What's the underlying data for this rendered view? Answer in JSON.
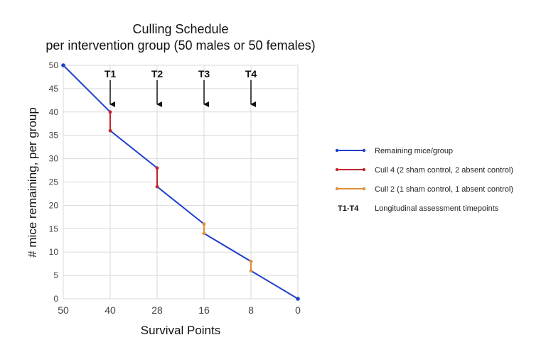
{
  "chart_data": {
    "type": "line",
    "title": [
      "Culling Schedule",
      "per intervention group (50 males or 50 females)"
    ],
    "xlabel": "Survival Points",
    "ylabel": "# mice remaining, per group",
    "x_tick_labels": [
      "50",
      "40",
      "28",
      "16",
      "8",
      "0"
    ],
    "y_ticks": [
      0,
      5,
      10,
      15,
      20,
      25,
      30,
      35,
      40,
      45,
      50
    ],
    "ylim": [
      0,
      50
    ],
    "x_positions": [
      0,
      1,
      2,
      3,
      4,
      5
    ],
    "grid": true,
    "legend_position": "right",
    "series": [
      {
        "name": "Remaining mice/group",
        "color": "#1f3fcc",
        "points": [
          [
            0,
            50
          ],
          [
            1,
            40
          ],
          [
            1,
            36
          ],
          [
            2,
            28
          ],
          [
            2,
            24
          ],
          [
            3,
            16
          ],
          [
            3,
            14
          ],
          [
            4,
            8
          ],
          [
            4,
            6
          ],
          [
            5,
            0
          ]
        ]
      },
      {
        "name": "Cull 4 (2 sham control, 2 absent control)",
        "color": "#c0282d",
        "segments": [
          [
            [
              1,
              40
            ],
            [
              1,
              36
            ]
          ],
          [
            [
              2,
              28
            ],
            [
              2,
              24
            ]
          ]
        ]
      },
      {
        "name": "Cull 2 (1 sham control, 1 absent control)",
        "color": "#e0913a",
        "segments": [
          [
            [
              3,
              16
            ],
            [
              3,
              14
            ]
          ],
          [
            [
              4,
              8
            ],
            [
              4,
              6
            ]
          ]
        ]
      }
    ],
    "timepoints": {
      "key": "T1-T4",
      "description": "Longitudinal assessment timepoints",
      "markers": [
        {
          "label": "T1",
          "x": 1
        },
        {
          "label": "T2",
          "x": 2
        },
        {
          "label": "T3",
          "x": 3
        },
        {
          "label": "T4",
          "x": 4
        }
      ]
    }
  }
}
